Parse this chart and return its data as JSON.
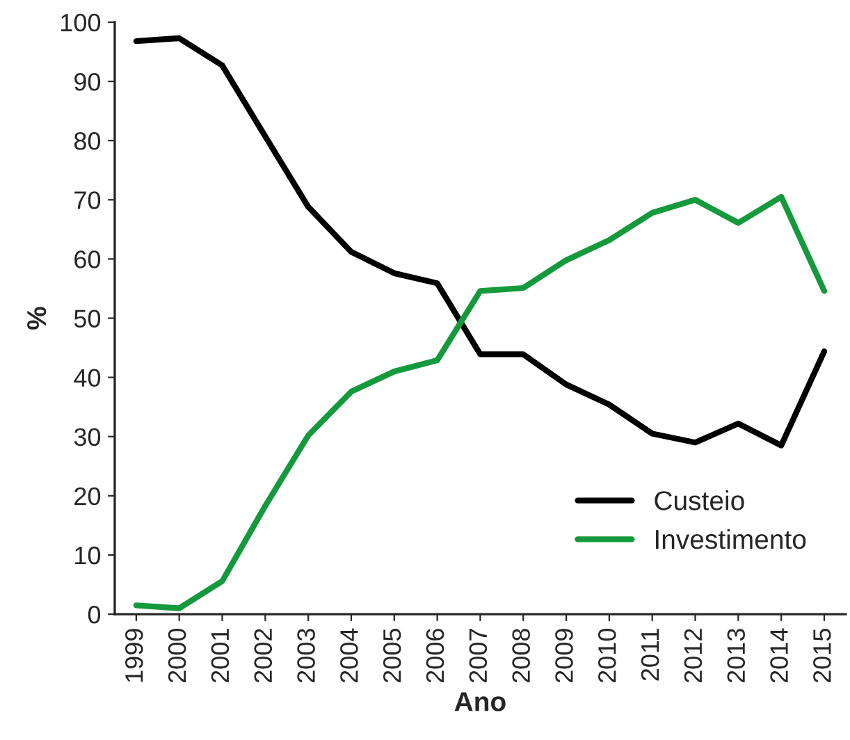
{
  "chart_data": {
    "type": "line",
    "xlabel": "Ano",
    "ylabel": "%",
    "categories": [
      "1999",
      "2000",
      "2001",
      "2002",
      "2003",
      "2004",
      "2005",
      "2006",
      "2007",
      "2008",
      "2009",
      "2010",
      "2011",
      "2012",
      "2013",
      "2014",
      "2015"
    ],
    "series": [
      {
        "name": "Custeio",
        "color": "#000000",
        "values": [
          96.8,
          97.3,
          92.7,
          80.7,
          68.8,
          61.2,
          57.6,
          55.9,
          43.9,
          43.9,
          38.8,
          35.4,
          30.5,
          29.0,
          32.2,
          28.5,
          44.4
        ]
      },
      {
        "name": "Investimento",
        "color": "#149a3c",
        "values": [
          1.5,
          1.0,
          5.6,
          18.3,
          30.2,
          37.6,
          41.0,
          42.9,
          54.6,
          55.1,
          59.8,
          63.2,
          67.8,
          70.0,
          66.1,
          70.5,
          54.6
        ]
      }
    ],
    "ylim": [
      0,
      100
    ],
    "yticks": [
      0,
      10,
      20,
      30,
      40,
      50,
      60,
      70,
      80,
      90,
      100
    ],
    "grid": false,
    "legend": "bottom right",
    "marker": "none",
    "line_style": "solid"
  }
}
